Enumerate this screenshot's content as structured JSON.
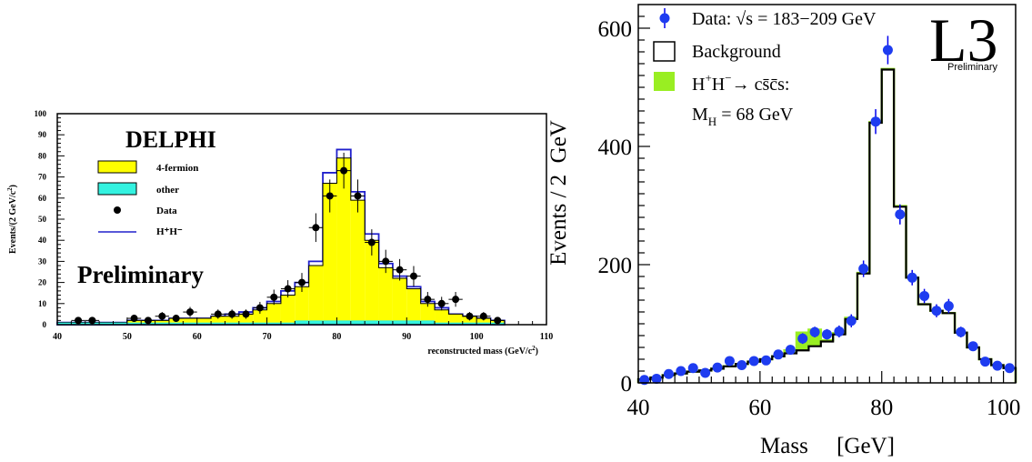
{
  "chart_data": [
    {
      "type": "bar",
      "experiment_label": "DELPHI",
      "watermark": "Preliminary",
      "xlabel": "reconstructed mass (GeV/c",
      "xlabel_sup": "2",
      "xlabel_close": ")",
      "ylabel": "Events/(2 GeV/c",
      "ylabel_sup": "2",
      "ylabel_close": ")",
      "xlim": [
        40,
        110
      ],
      "ylim": [
        0,
        100
      ],
      "xticks": [
        40,
        50,
        60,
        70,
        80,
        90,
        100,
        110
      ],
      "yticks": [
        0,
        10,
        20,
        30,
        40,
        50,
        60,
        70,
        80,
        90,
        100
      ],
      "legend_position": "top-left",
      "bin_width": 2,
      "bin_starts": [
        40,
        42,
        44,
        46,
        48,
        50,
        52,
        54,
        56,
        58,
        60,
        62,
        64,
        66,
        68,
        70,
        72,
        74,
        76,
        78,
        80,
        82,
        84,
        86,
        88,
        90,
        92,
        94,
        96,
        98,
        100,
        102
      ],
      "series": [
        {
          "name": "4-fermion",
          "color": "#ffff00",
          "values": [
            1,
            1,
            1,
            1,
            1,
            2,
            2,
            2,
            3,
            3,
            3,
            4,
            4,
            5,
            7,
            10,
            14,
            18,
            28,
            67,
            79,
            59,
            40,
            27,
            22,
            17,
            10,
            7,
            5,
            4,
            3,
            2
          ]
        },
        {
          "name": "other",
          "color": "#33f2e0",
          "values": [
            1,
            1,
            1,
            1,
            1,
            1,
            1,
            1,
            1,
            1,
            1,
            1,
            1,
            1,
            1,
            1,
            1,
            2,
            2,
            2,
            2,
            2,
            2,
            2,
            2,
            2,
            2,
            1,
            1,
            1,
            1,
            1
          ]
        },
        {
          "name": "H⁺H⁻",
          "color": "#2020cc",
          "values": [
            1,
            1,
            1,
            1,
            1,
            2,
            2,
            2,
            3,
            3,
            3,
            4,
            5,
            6,
            8,
            11,
            16,
            20,
            30,
            72,
            83,
            63,
            43,
            29,
            23,
            18,
            11,
            8,
            5,
            4,
            3,
            2
          ]
        }
      ],
      "data_points": {
        "name": "Data",
        "x": [
          43,
          45,
          51,
          53,
          55,
          57,
          59,
          63,
          65,
          67,
          69,
          71,
          73,
          75,
          77,
          79,
          81,
          83,
          85,
          87,
          89,
          91,
          93,
          95,
          97,
          99,
          101,
          103
        ],
        "y": [
          2,
          2,
          3,
          2,
          4,
          3,
          6,
          5,
          5,
          5,
          8,
          13,
          17,
          20,
          46,
          61,
          73,
          61,
          39,
          30,
          26,
          23,
          12,
          10,
          12,
          4,
          4,
          2
        ],
        "err": [
          1.4,
          1.4,
          1.7,
          1.4,
          2,
          1.7,
          2.4,
          2.2,
          2.2,
          2.2,
          2.8,
          3.6,
          4.1,
          4.5,
          6.8,
          7.8,
          8.5,
          7.8,
          6.2,
          5.5,
          5.1,
          4.8,
          3.5,
          3.2,
          3.5,
          2,
          2,
          1.4
        ]
      }
    },
    {
      "type": "bar",
      "experiment_label": "L3",
      "watermark": "Preliminary",
      "xlabel": "Mass     [GeV]",
      "ylabel": "Events / 2  GeV",
      "xlim": [
        40,
        102
      ],
      "ylim": [
        0,
        640
      ],
      "xticks": [
        40,
        60,
        80,
        100
      ],
      "yticks": [
        0,
        200,
        400,
        600
      ],
      "legend_position": "top-left",
      "legend": {
        "data": "Data: √s = 183−209 GeV",
        "background": "Background",
        "signal_prefix": "H",
        "signal_sup1": "+",
        "signal_mid": "H",
        "signal_sup2": "−",
        "signal_suffix": "→ cs̄c̄s:",
        "mass_prefix": "M",
        "mass_sub": "H",
        "mass_suffix": " = 68  GeV"
      },
      "bin_width": 2,
      "bin_starts": [
        40,
        42,
        44,
        46,
        48,
        50,
        52,
        54,
        56,
        58,
        60,
        62,
        64,
        66,
        68,
        70,
        72,
        74,
        76,
        78,
        80,
        82,
        84,
        86,
        88,
        90,
        92,
        94,
        96,
        98,
        100
      ],
      "series": [
        {
          "name": "Background",
          "color": "#000000",
          "values": [
            6,
            9,
            13,
            16,
            19,
            21,
            24,
            28,
            32,
            36,
            40,
            45,
            50,
            55,
            62,
            70,
            82,
            108,
            185,
            440,
            530,
            298,
            178,
            133,
            122,
            118,
            85,
            60,
            40,
            30,
            25
          ]
        },
        {
          "name": "H⁺H⁻→ cs̄c̄s",
          "color": "#99ee22",
          "values": [
            6,
            9,
            13,
            16,
            19,
            21,
            24,
            28,
            32,
            36,
            40,
            45,
            55,
            85,
            90,
            72,
            84,
            110,
            186,
            441,
            531,
            299,
            178,
            133,
            122,
            118,
            85,
            60,
            40,
            30,
            25
          ]
        }
      ],
      "data_points": {
        "name": "Data",
        "x": [
          41,
          43,
          45,
          47,
          49,
          51,
          53,
          55,
          57,
          59,
          61,
          63,
          65,
          67,
          69,
          71,
          73,
          75,
          77,
          79,
          81,
          83,
          85,
          87,
          89,
          91,
          93,
          95,
          97,
          99,
          101
        ],
        "y": [
          5,
          7,
          15,
          20,
          25,
          17,
          26,
          37,
          30,
          37,
          38,
          48,
          56,
          75,
          86,
          82,
          87,
          105,
          193,
          442,
          563,
          285,
          178,
          147,
          122,
          130,
          86,
          62,
          36,
          29,
          25
        ],
        "err": [
          3,
          3,
          4,
          5,
          5,
          4,
          5,
          6,
          6,
          6,
          6,
          7,
          8,
          9,
          9,
          9,
          10,
          11,
          14,
          21,
          24,
          17,
          13,
          12,
          11,
          12,
          9,
          8,
          6,
          6,
          5
        ]
      }
    }
  ]
}
